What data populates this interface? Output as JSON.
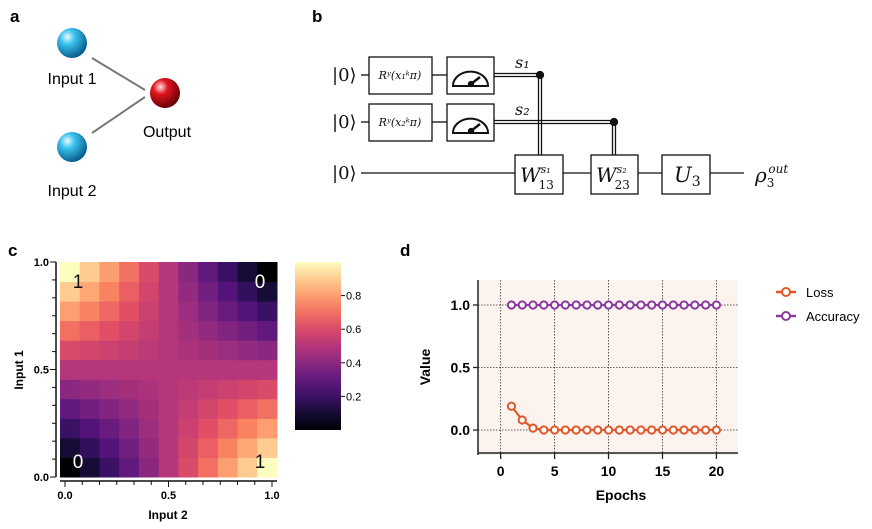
{
  "panel_labels": {
    "a": "a",
    "b": "b",
    "c": "c",
    "d": "d"
  },
  "panel_a": {
    "input1": "Input 1",
    "input2": "Input 2",
    "output": "Output",
    "input_color": "#2fb6e6",
    "output_color": "#d8101a"
  },
  "panel_b": {
    "ket": "|0⟩",
    "gate1": "Rʸ(x₁ᵏπ)",
    "gate2": "Rʸ(x₂ᵏπ)",
    "s1": "s₁",
    "s2": "s₂",
    "w13": "W",
    "w13_sup": "s₁",
    "w13_sub": "13",
    "w23": "W",
    "w23_sup": "s₂",
    "w23_sub": "23",
    "u3": "U",
    "u3_sub": "3",
    "rho": "ρ",
    "rho_sub": "3",
    "rho_sup": "out"
  },
  "chart_data": [
    {
      "type": "heatmap",
      "xlabel": "Input 2",
      "ylabel": "Input 1",
      "xlim": [
        0,
        1
      ],
      "ylim": [
        0,
        1
      ],
      "xticks": [
        "0.0",
        "0.5",
        "1.0"
      ],
      "yticks": [
        "0.0",
        "0.5",
        "1.0"
      ],
      "colormap": "magma",
      "colorbar_ticks": [
        "0.2",
        "0.4",
        "0.6",
        "0.8"
      ],
      "colorbar_range": [
        0,
        1
      ],
      "annotations": [
        {
          "text": "1",
          "corner": "top-left"
        },
        {
          "text": "0",
          "corner": "top-right"
        },
        {
          "text": "0",
          "corner": "bottom-left"
        },
        {
          "text": "1",
          "corner": "bottom-right"
        }
      ],
      "grid_rows_input1_ascending": [
        [
          0,
          0.1,
          0.2,
          0.3,
          0.4,
          0.5,
          0.6,
          0.7,
          0.8,
          0.9,
          1
        ],
        [
          0.1,
          0.18,
          0.26,
          0.34,
          0.42,
          0.5,
          0.58,
          0.66,
          0.74,
          0.82,
          0.9
        ],
        [
          0.2,
          0.26,
          0.32,
          0.38,
          0.44,
          0.5,
          0.56,
          0.62,
          0.68,
          0.74,
          0.8
        ],
        [
          0.3,
          0.34,
          0.38,
          0.42,
          0.46,
          0.5,
          0.54,
          0.58,
          0.62,
          0.66,
          0.7
        ],
        [
          0.4,
          0.42,
          0.44,
          0.46,
          0.48,
          0.5,
          0.52,
          0.54,
          0.56,
          0.58,
          0.6
        ],
        [
          0.5,
          0.5,
          0.5,
          0.5,
          0.5,
          0.5,
          0.5,
          0.5,
          0.5,
          0.5,
          0.5
        ],
        [
          0.6,
          0.58,
          0.56,
          0.54,
          0.52,
          0.5,
          0.48,
          0.46,
          0.44,
          0.42,
          0.4
        ],
        [
          0.7,
          0.66,
          0.62,
          0.58,
          0.54,
          0.5,
          0.46,
          0.42,
          0.38,
          0.34,
          0.3
        ],
        [
          0.8,
          0.74,
          0.68,
          0.62,
          0.56,
          0.5,
          0.44,
          0.38,
          0.32,
          0.26,
          0.2
        ],
        [
          0.9,
          0.82,
          0.74,
          0.66,
          0.58,
          0.5,
          0.42,
          0.34,
          0.26,
          0.18,
          0.1
        ],
        [
          1,
          0.9,
          0.8,
          0.7,
          0.6,
          0.5,
          0.4,
          0.3,
          0.2,
          0.1,
          0
        ]
      ]
    },
    {
      "type": "line",
      "xlabel": "Epochs",
      "ylabel": "Value",
      "xlim": [
        -2.1,
        22
      ],
      "ylim": [
        -0.2,
        1.2
      ],
      "xticks": [
        "0",
        "5",
        "10",
        "15",
        "20"
      ],
      "yticks": [
        "0.0",
        "0.5",
        "1.0"
      ],
      "grid": true,
      "legend": "right",
      "background": "#fcf3ee",
      "x": [
        1,
        2,
        3,
        4,
        5,
        6,
        7,
        8,
        9,
        10,
        11,
        12,
        13,
        14,
        15,
        16,
        17,
        18,
        19,
        20
      ],
      "series": [
        {
          "name": "Loss",
          "color": "#e0582a",
          "values": [
            0.19,
            0.08,
            0.015,
            0,
            0,
            0,
            0,
            0,
            0,
            0,
            0,
            0,
            0,
            0,
            0,
            0,
            0,
            0,
            0,
            0
          ]
        },
        {
          "name": "Accuracy",
          "color": "#8a3a9e",
          "values": [
            1,
            1,
            1,
            1,
            1,
            1,
            1,
            1,
            1,
            1,
            1,
            1,
            1,
            1,
            1,
            1,
            1,
            1,
            1,
            1
          ]
        }
      ]
    }
  ]
}
